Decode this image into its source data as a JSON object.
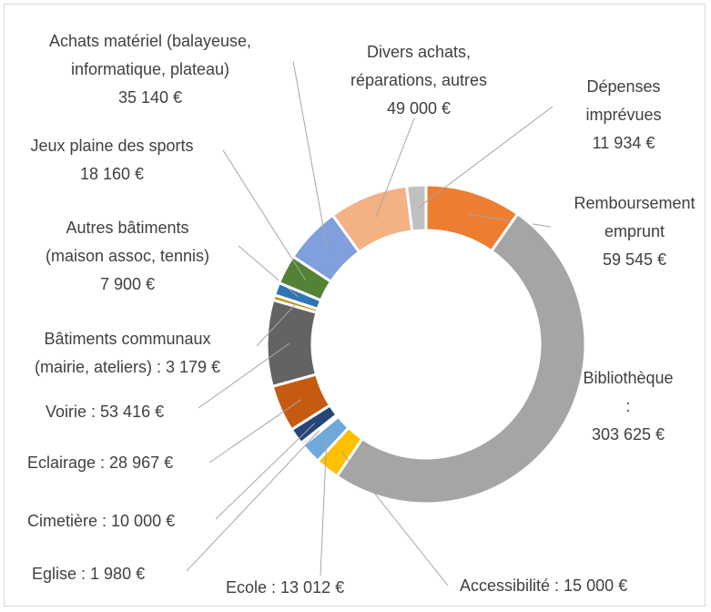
{
  "chart_data": {
    "type": "donut",
    "categories": [
      "Remboursement\nemprunt",
      "Bibliothèque :",
      "Accessibilité :",
      "Ecole :",
      "Eglise :",
      "Cimetière :",
      "Eclairage :",
      "Voirie :",
      "Bâtiments communaux\n(mairie, ateliers) :",
      "Autres bâtiments\n(maison assoc, tennis)",
      "Jeux plaine des sports",
      "Achats matériel (balayeuse,\ninformatique, plateau)",
      "Divers achats,\nréparations, autres",
      "Dépenses\nimprévues"
    ],
    "values": [
      59545,
      303625,
      15000,
      13012,
      1980,
      10000,
      28967,
      53416,
      3179,
      7900,
      18160,
      35140,
      49000,
      11934
    ],
    "value_labels": [
      "59 545 €",
      "303 625 €",
      "15 000 €",
      "13 012 €",
      "1 980 €",
      "10 000 €",
      "28 967 €",
      "53 416 €",
      "3 179 €",
      "7 900 €",
      "18 160 €",
      "35 140 €",
      "49 000 €",
      "11 934 €"
    ],
    "colors": [
      "#ed7d31",
      "#a5a5a5",
      "#ffc000",
      "#6fa8dc",
      "#8fb4e3",
      "#264478",
      "#c55a11",
      "#636363",
      "#bf9000",
      "#2e75b6",
      "#548235",
      "#7f9fdd",
      "#f4b183",
      "#c0c0c0"
    ]
  }
}
